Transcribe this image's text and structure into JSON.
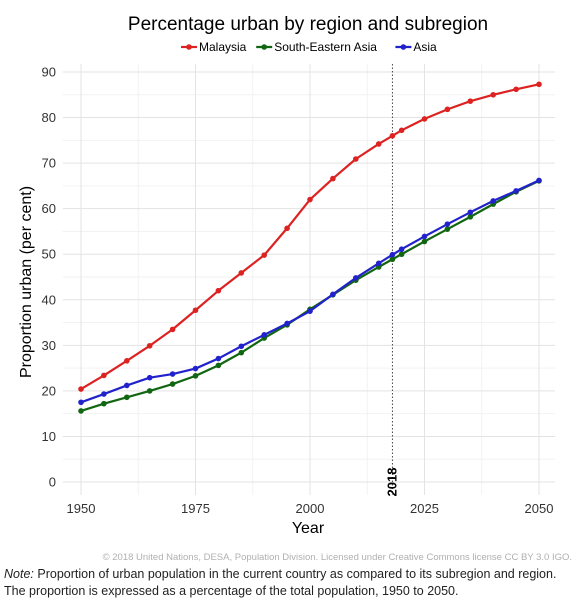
{
  "chart_data": {
    "type": "line",
    "title": "Percentage urban by region and subregion",
    "xlabel": "Year",
    "ylabel": "Proportion urban (per cent)",
    "xlim": [
      1950,
      2050
    ],
    "ylim": [
      0,
      90
    ],
    "xticks": [
      1950,
      1975,
      2000,
      2025,
      2050
    ],
    "yticks": [
      0,
      10,
      20,
      30,
      40,
      50,
      60,
      70,
      80,
      90
    ],
    "grid": true,
    "legend": "top-center",
    "x": [
      1950,
      1955,
      1960,
      1965,
      1970,
      1975,
      1980,
      1985,
      1990,
      1995,
      2000,
      2005,
      2010,
      2015,
      2018,
      2020,
      2025,
      2030,
      2035,
      2040,
      2045,
      2050
    ],
    "series": [
      {
        "name": "Malaysia",
        "color": "#dd2222",
        "values": [
          20.4,
          23.4,
          26.6,
          29.9,
          33.5,
          37.7,
          42.0,
          45.9,
          49.8,
          55.7,
          62.0,
          66.6,
          70.9,
          74.2,
          76.0,
          77.2,
          79.7,
          81.8,
          83.6,
          85.0,
          86.2,
          87.3
        ]
      },
      {
        "name": "South-Eastern Asia",
        "color": "#116611",
        "values": [
          15.6,
          17.2,
          18.6,
          20.0,
          21.5,
          23.3,
          25.6,
          28.4,
          31.6,
          34.5,
          37.9,
          41.1,
          44.3,
          47.2,
          48.9,
          50.0,
          52.8,
          55.5,
          58.2,
          61.0,
          63.7,
          66.1
        ]
      },
      {
        "name": "Asia",
        "color": "#2222cc",
        "values": [
          17.5,
          19.3,
          21.2,
          22.9,
          23.7,
          24.9,
          27.1,
          29.8,
          32.3,
          34.8,
          37.5,
          41.2,
          44.8,
          48.0,
          49.9,
          51.1,
          53.9,
          56.6,
          59.2,
          61.7,
          63.9,
          66.2
        ]
      }
    ],
    "reference_line": {
      "x": 2018,
      "label": "2018"
    }
  },
  "credit": "© 2018 United Nations, DESA, Population Division. Licensed under Creative Commons license CC BY 3.0 IGO.",
  "note": {
    "label": "Note:",
    "text": " Proportion of urban population in the current country as compared to its subregion and region. The proportion is expressed as a percentage of the total population, 1950 to 2050."
  }
}
